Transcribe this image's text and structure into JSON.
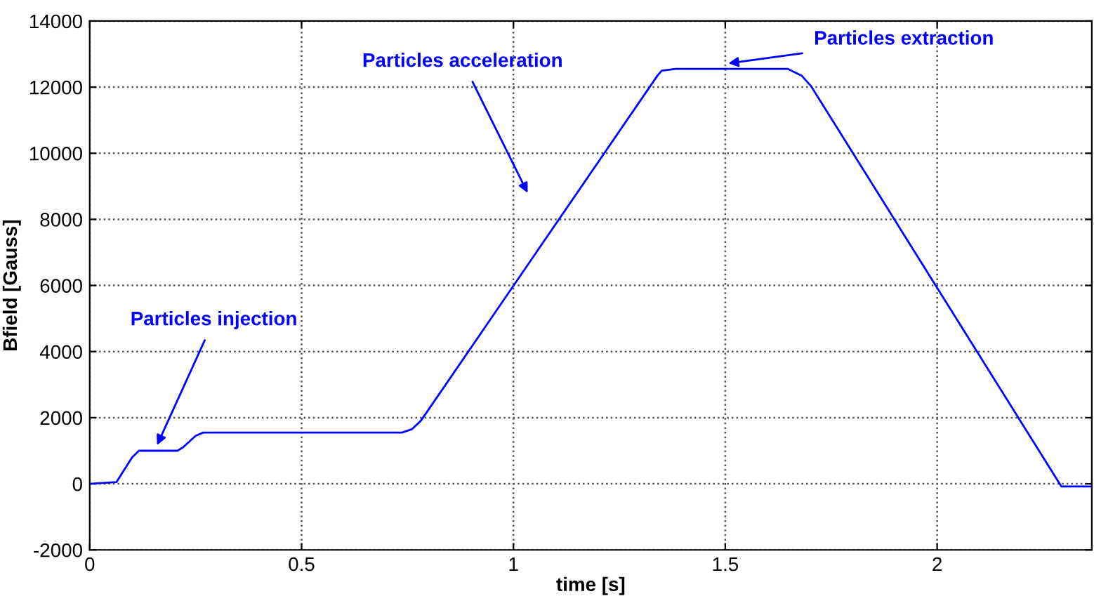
{
  "chart_data": {
    "type": "line",
    "xlabel": "time [s]",
    "ylabel": "Bfield [Gauss]",
    "xlim": [
      0,
      2.365
    ],
    "ylim": [
      -2000,
      14000
    ],
    "xticks": [
      0,
      0.5,
      1,
      1.5,
      2
    ],
    "yticks": [
      -2000,
      0,
      2000,
      4000,
      6000,
      8000,
      10000,
      12000,
      14000
    ],
    "grid": true,
    "marker": "none",
    "line_style": "solid",
    "series": [
      {
        "color": "#0000ff",
        "x": [
          0,
          0.063,
          0.1,
          0.116,
          0.207,
          0.22,
          0.25,
          0.268,
          0.737,
          0.76,
          0.781,
          0.8,
          1.34,
          1.35,
          1.383,
          1.648,
          1.68,
          1.703,
          2.293,
          2.365
        ],
        "values": [
          0,
          50,
          800,
          1000,
          1000,
          1100,
          1450,
          1550,
          1550,
          1650,
          1900,
          2250,
          12350,
          12500,
          12550,
          12550,
          12350,
          12020,
          -80,
          -80
        ]
      }
    ],
    "annotations": [
      {
        "text": "Particles injection",
        "x": 0.159,
        "y": 1170
      },
      "Particles acceleration",
      {
        "text": "Particles extraction",
        "x": 1.507,
        "y": 12720
      }
    ]
  }
}
